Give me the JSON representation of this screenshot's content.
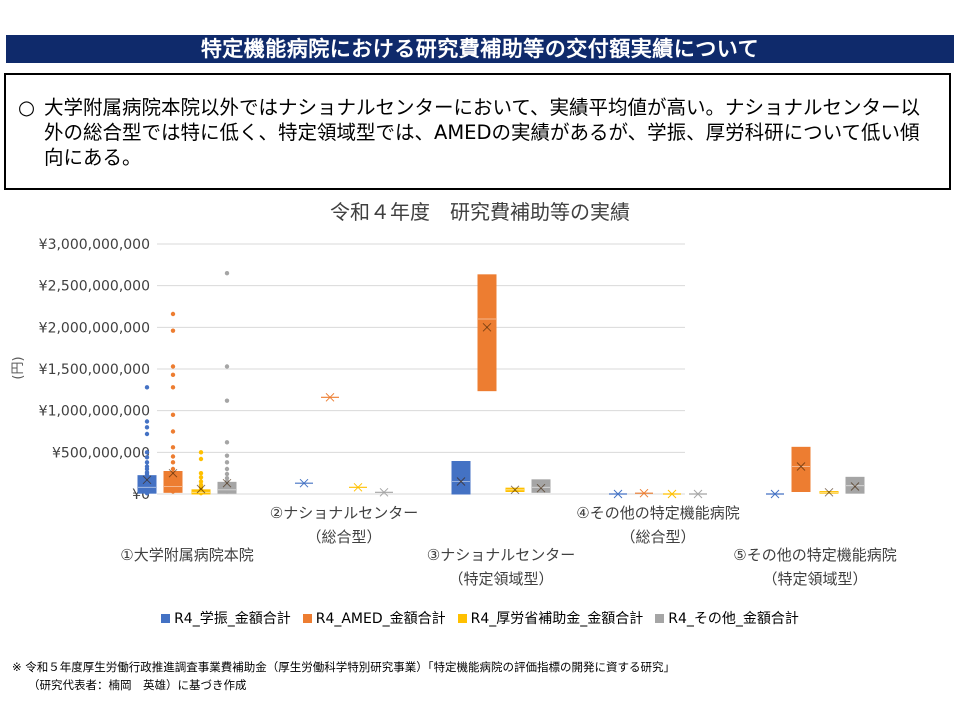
{
  "header": {
    "title": "特定機能病院における研究費補助等の交付額実績について"
  },
  "summary": {
    "marker": "○",
    "text": "大学附属病院本院以外ではナショナルセンターにおいて、実績平均値が高い。ナショナルセンター以外の総合型では特に低く、特定領域型では、AMEDの実績があるが、学振、厚労科研について低い傾向にある。"
  },
  "footnote": {
    "line1": "※ 令和５年度厚生労働行政推進調査事業費補助金（厚生労働科学特別研究事業）「特定機能病院の評価指標の開発に資する研究」",
    "line2": "（研究代表者：楠岡　英雄）に基づき作成"
  },
  "chart_data": {
    "type": "box",
    "title": "令和４年度　研究費補助等の実績",
    "ylabel": "(円)",
    "ylim": [
      0,
      3000000000
    ],
    "yticks": [
      "¥0",
      "¥500,000,000",
      "¥1,000,000,000",
      "¥1,500,000,000",
      "¥2,000,000,000",
      "¥2,500,000,000",
      "¥3,000,000,000"
    ],
    "grid": true,
    "legend_position": "bottom",
    "categories": [
      [
        "①大学附属病院本院"
      ],
      [
        "②ナショナルセンター",
        "（総合型）"
      ],
      [
        "③ナショナルセンター",
        "（特定領域型）"
      ],
      [
        "④その他の特定機能病院",
        "（総合型）"
      ],
      [
        "⑤その他の特定機能病院",
        "（特定領域型）"
      ]
    ],
    "series": [
      {
        "name": "R4_学振_金額合計",
        "color": "#4472c4",
        "boxes": [
          {
            "q1": 10000000,
            "q3": 220000000,
            "median": 80000000,
            "mean": 170000000,
            "points": [
              1280000000,
              870000000,
              800000000,
              720000000,
              500000000,
              440000000,
              380000000,
              330000000,
              300000000,
              260000000,
              240000000,
              210000000,
              180000000,
              150000000,
              120000000,
              90000000,
              60000000,
              40000000,
              20000000,
              10000000
            ]
          },
          {
            "q1": 130000000,
            "q3": 130000000,
            "median": 130000000,
            "mean": 130000000,
            "points": []
          },
          {
            "q1": 0,
            "q3": 390000000,
            "median": 150000000,
            "mean": 150000000,
            "points": []
          },
          {
            "q1": 0,
            "q3": 0,
            "median": 0,
            "mean": 0,
            "points": []
          },
          {
            "q1": 0,
            "q3": 0,
            "median": 0,
            "mean": 0,
            "points": []
          }
        ]
      },
      {
        "name": "R4_AMED_金額合計",
        "color": "#ed7d31",
        "boxes": [
          {
            "q1": 20000000,
            "q3": 270000000,
            "median": 90000000,
            "mean": 250000000,
            "points": [
              2160000000,
              1960000000,
              1530000000,
              1430000000,
              1280000000,
              950000000,
              750000000,
              560000000,
              450000000,
              380000000,
              300000000,
              230000000,
              170000000,
              120000000,
              70000000,
              30000000
            ]
          },
          {
            "q1": 1160000000,
            "q3": 1160000000,
            "median": 1160000000,
            "mean": 1160000000,
            "points": []
          },
          {
            "q1": 1240000000,
            "q3": 2630000000,
            "median": 2100000000,
            "mean": 2000000000,
            "points": []
          },
          {
            "q1": 10000000,
            "q3": 10000000,
            "median": 10000000,
            "mean": 10000000,
            "points": []
          },
          {
            "q1": 30000000,
            "q3": 560000000,
            "median": 330000000,
            "mean": 330000000,
            "points": []
          }
        ]
      },
      {
        "name": "R4_厚労省補助金_金額合計",
        "color": "#ffc000",
        "boxes": [
          {
            "q1": 0,
            "q3": 50000000,
            "median": 20000000,
            "mean": 60000000,
            "points": [
              500000000,
              420000000,
              250000000,
              200000000,
              150000000,
              110000000,
              80000000,
              50000000,
              30000000,
              10000000
            ]
          },
          {
            "q1": 80000000,
            "q3": 80000000,
            "median": 80000000,
            "mean": 80000000,
            "points": []
          },
          {
            "q1": 30000000,
            "q3": 70000000,
            "median": 50000000,
            "mean": 50000000,
            "points": []
          },
          {
            "q1": 0,
            "q3": 0,
            "median": 0,
            "mean": 0,
            "points": []
          },
          {
            "q1": 10000000,
            "q3": 30000000,
            "median": 20000000,
            "mean": 20000000,
            "points": []
          }
        ]
      },
      {
        "name": "R4_その他_金額合計",
        "color": "#a5a5a5",
        "boxes": [
          {
            "q1": 10000000,
            "q3": 140000000,
            "median": 50000000,
            "mean": 130000000,
            "points": [
              2650000000,
              1530000000,
              1120000000,
              620000000,
              460000000,
              380000000,
              300000000,
              240000000,
              190000000,
              150000000,
              100000000,
              60000000,
              30000000
            ]
          },
          {
            "q1": 20000000,
            "q3": 20000000,
            "median": 20000000,
            "mean": 20000000,
            "points": []
          },
          {
            "q1": 20000000,
            "q3": 170000000,
            "median": 80000000,
            "mean": 70000000,
            "points": []
          },
          {
            "q1": 0,
            "q3": 0,
            "median": 0,
            "mean": 0,
            "points": []
          },
          {
            "q1": 10000000,
            "q3": 200000000,
            "median": 100000000,
            "mean": 90000000,
            "points": []
          }
        ]
      }
    ]
  }
}
